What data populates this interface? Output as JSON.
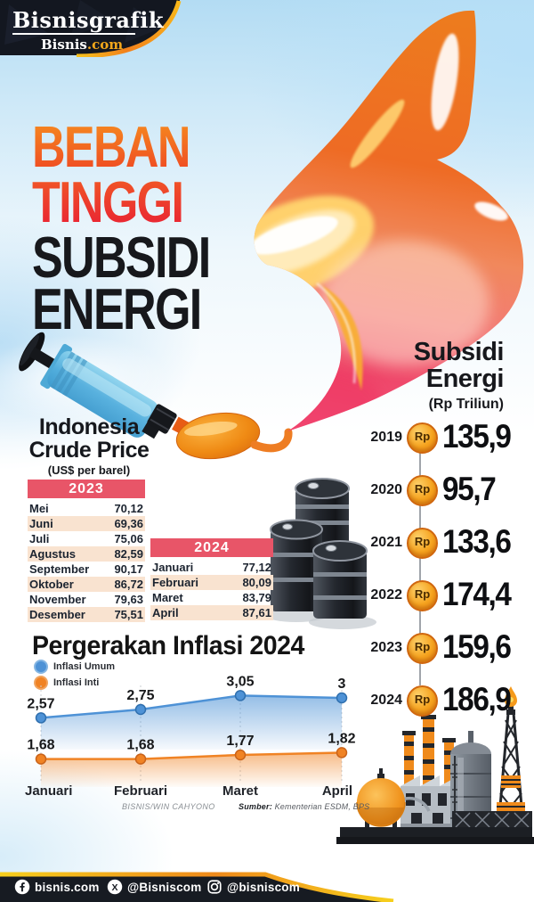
{
  "header": {
    "logo_title": "Bisnisgrafik",
    "logo_brand": "Bisnis",
    "logo_brand_suffix": ".com"
  },
  "title": {
    "line1": "BEBAN",
    "line2": "TINGGI",
    "line3": "SUBSIDI",
    "line4": "ENERGI"
  },
  "crude": {
    "heading1": "Indonesia",
    "heading2": "Crude Price",
    "unit": "(US$ per barel)"
  },
  "subsidi": {
    "heading1": "Subsidi",
    "heading2": "Energi",
    "unit": "(Rp Triliun)"
  },
  "credits": {
    "credit": "BISNIS/WIN CAHYONO",
    "source_label": "Sumber:",
    "source_value": " Kementerian ESDM, BPS"
  },
  "footer": {
    "items": [
      {
        "icon": "facebook-icon",
        "label": "bisnis.com"
      },
      {
        "icon": "x-icon",
        "label": "@Bisniscom"
      },
      {
        "icon": "instagram-icon",
        "label": "@bisniscom"
      }
    ]
  },
  "colors": {
    "accent_orange": "#f08324",
    "accent_red": "#e81e35",
    "title_gradient_top": "#f68b1f",
    "table_header_pink": "#e85568",
    "row_alt_peach": "#f9e3d0",
    "inflasi_umum_blue": "#4e92d6",
    "inflasi_inti_orange": "#f08324",
    "coin_orange": "#f6a41f",
    "footer_dark": "#171b22",
    "stripe_yellow": "#f4c11d",
    "sky_blue": "#b3dcf3"
  },
  "chart_data": [
    {
      "type": "table",
      "title": "Indonesia Crude Price",
      "unit": "US$ per barel",
      "sections": [
        {
          "year": "2023",
          "rows": [
            [
              "Mei",
              "70,12"
            ],
            [
              "Juni",
              "69,36"
            ],
            [
              "Juli",
              "75,06"
            ],
            [
              "Agustus",
              "82,59"
            ],
            [
              "September",
              "90,17"
            ],
            [
              "Oktober",
              "86,72"
            ],
            [
              "November",
              "79,63"
            ],
            [
              "Desember",
              "75,51"
            ]
          ],
          "values": [
            70.12,
            69.36,
            75.06,
            82.59,
            90.17,
            86.72,
            79.63,
            75.51
          ]
        },
        {
          "year": "2024",
          "rows": [
            [
              "Januari",
              "77,12"
            ],
            [
              "Februari",
              "80,09"
            ],
            [
              "Maret",
              "83,79"
            ],
            [
              "April",
              "87,61"
            ]
          ],
          "values": [
            77.12,
            80.09,
            83.79,
            87.61
          ]
        }
      ]
    },
    {
      "type": "table",
      "title": "Subsidi Energi",
      "unit": "Rp Triliun",
      "currency": "Rp",
      "categories": [
        "2019",
        "2020",
        "2021",
        "2022",
        "2023",
        "2024"
      ],
      "values": [
        135.9,
        95.7,
        133.6,
        174.4,
        159.6,
        186.9
      ],
      "display": [
        "135,9",
        "95,7",
        "133,6",
        "174,4",
        "159,6",
        "186,9"
      ]
    },
    {
      "type": "line",
      "title": "Pergerakan Inflasi 2024",
      "categories": [
        "Januari",
        "Februari",
        "Maret",
        "April"
      ],
      "series": [
        {
          "name": "Inflasi Umum",
          "values": [
            2.57,
            2.75,
            3.05,
            3.0
          ],
          "labels": [
            "2,57",
            "2,75",
            "3,05",
            "3"
          ],
          "color": "#4e92d6",
          "dot_stroke": "#2f6fae"
        },
        {
          "name": "Inflasi Inti",
          "values": [
            1.68,
            1.68,
            1.77,
            1.82
          ],
          "labels": [
            "1,68",
            "1,68",
            "1,77",
            "1,82"
          ],
          "color": "#f08324",
          "dot_stroke": "#c9631a"
        }
      ],
      "ylim": [
        1.4,
        3.5
      ],
      "grid": "vertical-dashed",
      "legend_position": "top-left"
    }
  ]
}
